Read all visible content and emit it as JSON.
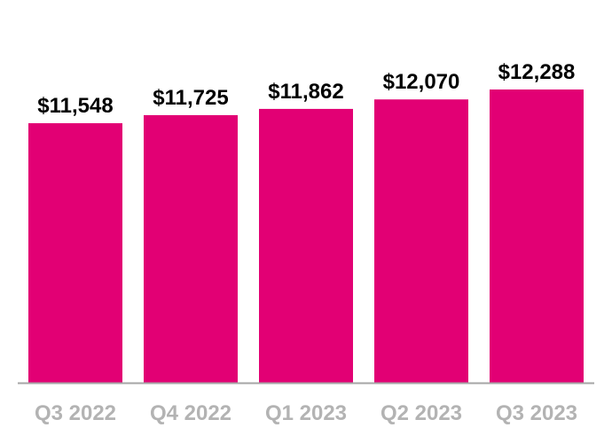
{
  "chart_data": {
    "type": "bar",
    "title": "",
    "xlabel": "",
    "ylabel": "",
    "categories": [
      "Q3 2022",
      "Q4 2022",
      "Q1 2023",
      "Q2 2023",
      "Q3 2023"
    ],
    "values": [
      11548,
      11725,
      11862,
      12070,
      12288
    ],
    "value_labels": [
      "$11,548",
      "$11,725",
      "$11,862",
      "$12,070",
      "$12,288"
    ],
    "ylim": [
      5850,
      14000
    ],
    "grid": false,
    "legend": "none",
    "colors": {
      "bar": "#E20074",
      "axis": "#a6a6a6",
      "category_label": "#b3b3b3",
      "value_label": "#000000"
    }
  }
}
